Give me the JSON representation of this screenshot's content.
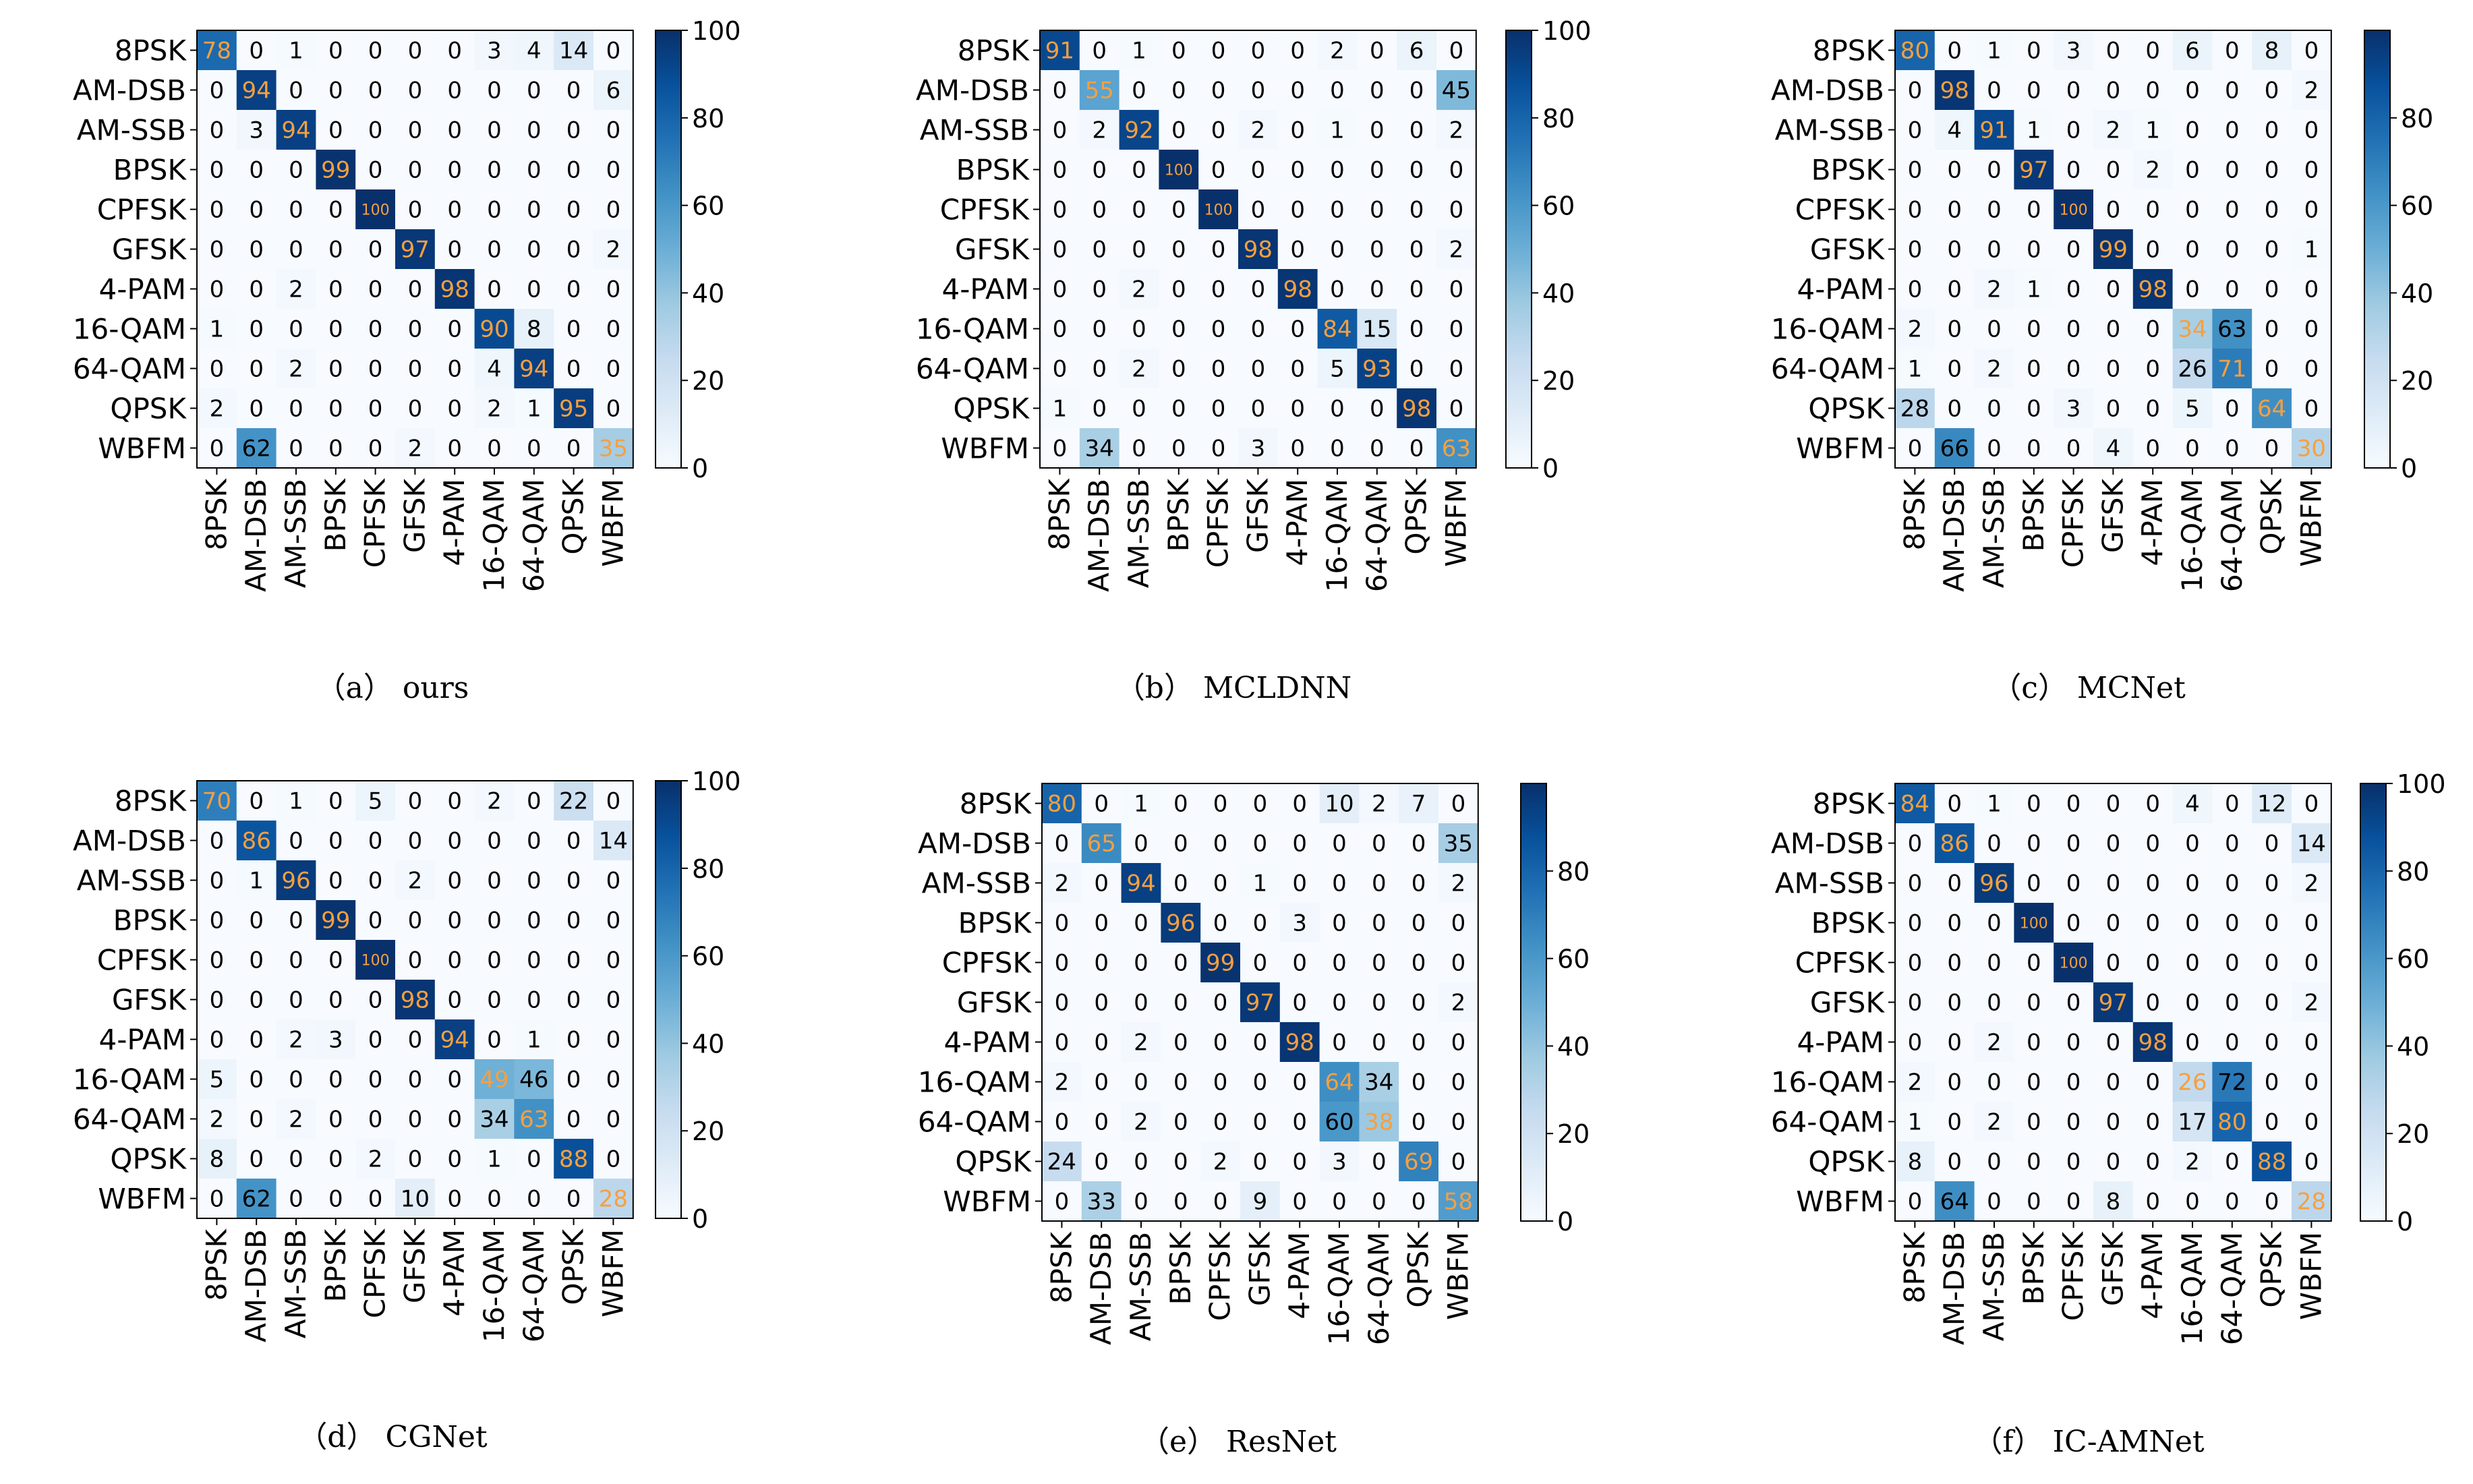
{
  "labels": [
    "8PSK",
    "AM-DSB",
    "AM-SSB",
    "BPSK",
    "CPFSK",
    "GFSK",
    "4-PAM",
    "16-QAM",
    "64-QAM",
    "QPSK",
    "WBFM"
  ],
  "colors": {
    "dark": "#08306b",
    "mid": "#2171b5",
    "light": "#f7fbff",
    "highlight": "#f5a040",
    "text": "#000000"
  },
  "chart_data": [
    {
      "type": "heatmap",
      "caption": "（a） ours",
      "colorbar_ticks": [
        0,
        20,
        40,
        60,
        80,
        100
      ],
      "vmax": 100,
      "matrix": [
        [
          78,
          0,
          1,
          0,
          0,
          0,
          0,
          3,
          4,
          14,
          0
        ],
        [
          0,
          94,
          0,
          0,
          0,
          0,
          0,
          0,
          0,
          0,
          6
        ],
        [
          0,
          3,
          94,
          0,
          0,
          0,
          0,
          0,
          0,
          0,
          0
        ],
        [
          0,
          0,
          0,
          99,
          0,
          0,
          0,
          0,
          0,
          0,
          0
        ],
        [
          0,
          0,
          0,
          0,
          100,
          0,
          0,
          0,
          0,
          0,
          0
        ],
        [
          0,
          0,
          0,
          0,
          0,
          97,
          0,
          0,
          0,
          0,
          2
        ],
        [
          0,
          0,
          2,
          0,
          0,
          0,
          98,
          0,
          0,
          0,
          0
        ],
        [
          1,
          0,
          0,
          0,
          0,
          0,
          0,
          90,
          8,
          0,
          0
        ],
        [
          0,
          0,
          2,
          0,
          0,
          0,
          0,
          4,
          94,
          0,
          0
        ],
        [
          2,
          0,
          0,
          0,
          0,
          0,
          0,
          2,
          1,
          95,
          0
        ],
        [
          0,
          62,
          0,
          0,
          0,
          2,
          0,
          0,
          0,
          0,
          35
        ]
      ]
    },
    {
      "type": "heatmap",
      "caption": "（b） MCLDNN",
      "colorbar_ticks": [
        0,
        20,
        40,
        60,
        80,
        100
      ],
      "vmax": 100,
      "matrix": [
        [
          91,
          0,
          1,
          0,
          0,
          0,
          0,
          2,
          0,
          6,
          0
        ],
        [
          0,
          55,
          0,
          0,
          0,
          0,
          0,
          0,
          0,
          0,
          45
        ],
        [
          0,
          2,
          92,
          0,
          0,
          2,
          0,
          1,
          0,
          0,
          2
        ],
        [
          0,
          0,
          0,
          100,
          0,
          0,
          0,
          0,
          0,
          0,
          0
        ],
        [
          0,
          0,
          0,
          0,
          100,
          0,
          0,
          0,
          0,
          0,
          0
        ],
        [
          0,
          0,
          0,
          0,
          0,
          98,
          0,
          0,
          0,
          0,
          2
        ],
        [
          0,
          0,
          2,
          0,
          0,
          0,
          98,
          0,
          0,
          0,
          0
        ],
        [
          0,
          0,
          0,
          0,
          0,
          0,
          0,
          84,
          15,
          0,
          0
        ],
        [
          0,
          0,
          2,
          0,
          0,
          0,
          0,
          5,
          93,
          0,
          0
        ],
        [
          1,
          0,
          0,
          0,
          0,
          0,
          0,
          0,
          0,
          98,
          0
        ],
        [
          0,
          34,
          0,
          0,
          0,
          3,
          0,
          0,
          0,
          0,
          63
        ]
      ]
    },
    {
      "type": "heatmap",
      "caption": "（c） MCNet",
      "colorbar_ticks": [
        0,
        20,
        40,
        60,
        80
      ],
      "vmax": 100,
      "matrix": [
        [
          80,
          0,
          1,
          0,
          3,
          0,
          0,
          6,
          0,
          8,
          0
        ],
        [
          0,
          98,
          0,
          0,
          0,
          0,
          0,
          0,
          0,
          0,
          2
        ],
        [
          0,
          4,
          91,
          1,
          0,
          2,
          1,
          0,
          0,
          0,
          0
        ],
        [
          0,
          0,
          0,
          97,
          0,
          0,
          2,
          0,
          0,
          0,
          0
        ],
        [
          0,
          0,
          0,
          0,
          100,
          0,
          0,
          0,
          0,
          0,
          0
        ],
        [
          0,
          0,
          0,
          0,
          0,
          99,
          0,
          0,
          0,
          0,
          1
        ],
        [
          0,
          0,
          2,
          1,
          0,
          0,
          98,
          0,
          0,
          0,
          0
        ],
        [
          2,
          0,
          0,
          0,
          0,
          0,
          0,
          34,
          63,
          0,
          0
        ],
        [
          1,
          0,
          2,
          0,
          0,
          0,
          0,
          26,
          71,
          0,
          0
        ],
        [
          28,
          0,
          0,
          0,
          3,
          0,
          0,
          5,
          0,
          64,
          0
        ],
        [
          0,
          66,
          0,
          0,
          0,
          4,
          0,
          0,
          0,
          0,
          30
        ]
      ]
    },
    {
      "type": "heatmap",
      "caption": "（d） CGNet",
      "colorbar_ticks": [
        0,
        20,
        40,
        60,
        80,
        100
      ],
      "vmax": 100,
      "matrix": [
        [
          70,
          0,
          1,
          0,
          5,
          0,
          0,
          2,
          0,
          22,
          0
        ],
        [
          0,
          86,
          0,
          0,
          0,
          0,
          0,
          0,
          0,
          0,
          14
        ],
        [
          0,
          1,
          96,
          0,
          0,
          2,
          0,
          0,
          0,
          0,
          0
        ],
        [
          0,
          0,
          0,
          99,
          0,
          0,
          0,
          0,
          0,
          0,
          0
        ],
        [
          0,
          0,
          0,
          0,
          100,
          0,
          0,
          0,
          0,
          0,
          0
        ],
        [
          0,
          0,
          0,
          0,
          0,
          98,
          0,
          0,
          0,
          0,
          0
        ],
        [
          0,
          0,
          2,
          3,
          0,
          0,
          94,
          0,
          1,
          0,
          0
        ],
        [
          5,
          0,
          0,
          0,
          0,
          0,
          0,
          49,
          46,
          0,
          0
        ],
        [
          2,
          0,
          2,
          0,
          0,
          0,
          0,
          34,
          63,
          0,
          0
        ],
        [
          8,
          0,
          0,
          0,
          2,
          0,
          0,
          1,
          0,
          88,
          0
        ],
        [
          0,
          62,
          0,
          0,
          0,
          10,
          0,
          0,
          0,
          0,
          28
        ]
      ]
    },
    {
      "type": "heatmap",
      "caption": "（e） ResNet",
      "colorbar_ticks": [
        0,
        20,
        40,
        60,
        80
      ],
      "vmax": 100,
      "matrix": [
        [
          80,
          0,
          1,
          0,
          0,
          0,
          0,
          10,
          2,
          7,
          0
        ],
        [
          0,
          65,
          0,
          0,
          0,
          0,
          0,
          0,
          0,
          0,
          35
        ],
        [
          2,
          0,
          94,
          0,
          0,
          1,
          0,
          0,
          0,
          0,
          2
        ],
        [
          0,
          0,
          0,
          96,
          0,
          0,
          3,
          0,
          0,
          0,
          0
        ],
        [
          0,
          0,
          0,
          0,
          99,
          0,
          0,
          0,
          0,
          0,
          0
        ],
        [
          0,
          0,
          0,
          0,
          0,
          97,
          0,
          0,
          0,
          0,
          2
        ],
        [
          0,
          0,
          2,
          0,
          0,
          0,
          98,
          0,
          0,
          0,
          0
        ],
        [
          2,
          0,
          0,
          0,
          0,
          0,
          0,
          64,
          34,
          0,
          0
        ],
        [
          0,
          0,
          2,
          0,
          0,
          0,
          0,
          60,
          38,
          0,
          0
        ],
        [
          24,
          0,
          0,
          0,
          2,
          0,
          0,
          3,
          0,
          69,
          0
        ],
        [
          0,
          33,
          0,
          0,
          0,
          9,
          0,
          0,
          0,
          0,
          58
        ]
      ]
    },
    {
      "type": "heatmap",
      "caption": "（f） IC-AMNet",
      "colorbar_ticks": [
        0,
        20,
        40,
        60,
        80,
        100
      ],
      "vmax": 100,
      "matrix": [
        [
          84,
          0,
          1,
          0,
          0,
          0,
          0,
          4,
          0,
          12,
          0
        ],
        [
          0,
          86,
          0,
          0,
          0,
          0,
          0,
          0,
          0,
          0,
          14
        ],
        [
          0,
          0,
          96,
          0,
          0,
          0,
          0,
          0,
          0,
          0,
          2
        ],
        [
          0,
          0,
          0,
          100,
          0,
          0,
          0,
          0,
          0,
          0,
          0
        ],
        [
          0,
          0,
          0,
          0,
          100,
          0,
          0,
          0,
          0,
          0,
          0
        ],
        [
          0,
          0,
          0,
          0,
          0,
          97,
          0,
          0,
          0,
          0,
          2
        ],
        [
          0,
          0,
          2,
          0,
          0,
          0,
          98,
          0,
          0,
          0,
          0
        ],
        [
          2,
          0,
          0,
          0,
          0,
          0,
          0,
          26,
          72,
          0,
          0
        ],
        [
          1,
          0,
          2,
          0,
          0,
          0,
          0,
          17,
          80,
          0,
          0
        ],
        [
          8,
          0,
          0,
          0,
          0,
          0,
          0,
          2,
          0,
          88,
          0
        ],
        [
          0,
          64,
          0,
          0,
          0,
          8,
          0,
          0,
          0,
          0,
          28
        ]
      ]
    }
  ]
}
